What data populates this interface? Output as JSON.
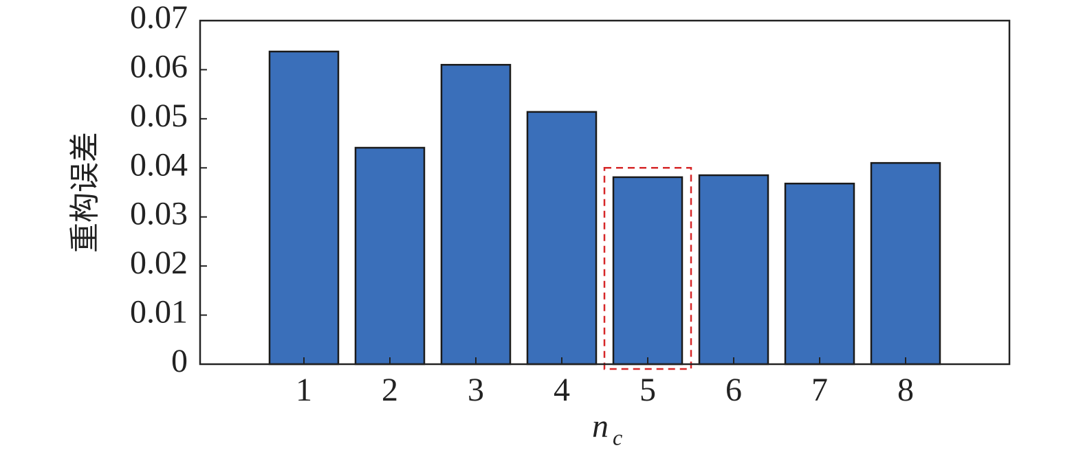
{
  "chart_data": {
    "type": "bar",
    "ylabel": "重构误差",
    "xlabel": "n",
    "xlabel_subscript": "c",
    "categories": [
      "1",
      "2",
      "3",
      "4",
      "5",
      "6",
      "7",
      "8"
    ],
    "values": [
      0.0637,
      0.0441,
      0.061,
      0.0514,
      0.0381,
      0.0385,
      0.0368,
      0.041
    ],
    "color": "#3a6fba",
    "ylim": [
      0,
      0.07
    ],
    "yticks": [
      0,
      0.01,
      0.02,
      0.03,
      0.04,
      0.05,
      0.06,
      0.07
    ],
    "highlight_category": "5",
    "highlight_color": "#d62728"
  }
}
